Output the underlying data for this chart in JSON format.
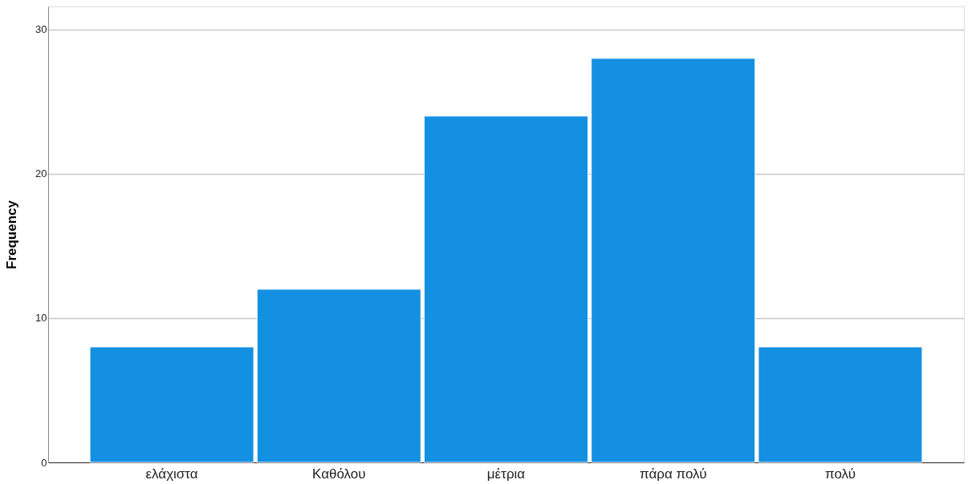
{
  "chart_data": {
    "type": "bar",
    "ylabel": "Frequency",
    "categories": [
      "ελάχιστα",
      "Καθόλου",
      "μέτρια",
      "πάρα πολύ",
      "πολύ"
    ],
    "values": [
      8,
      12,
      24,
      28,
      8
    ],
    "color": "#1490e3",
    "ylim": [
      0,
      31.6
    ],
    "yticks": [
      0,
      10,
      20,
      30
    ],
    "grid": "y"
  }
}
